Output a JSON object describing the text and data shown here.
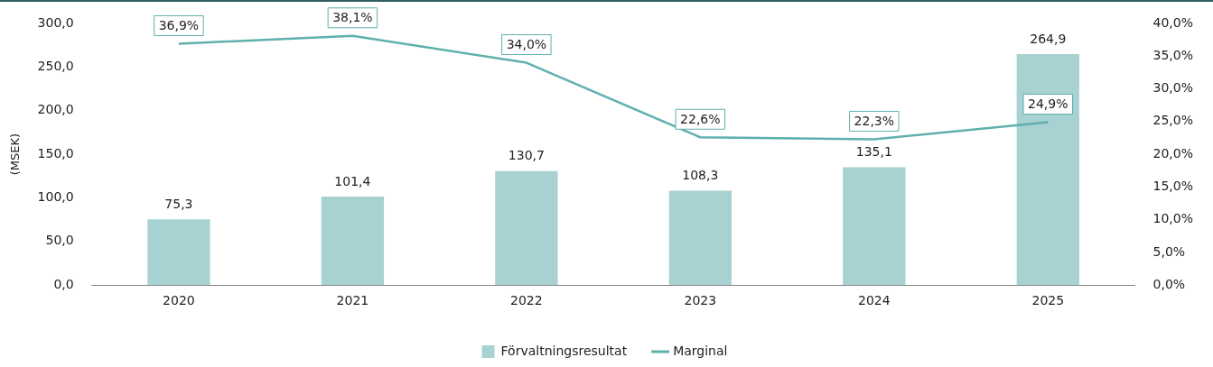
{
  "chart_data": {
    "type": "bar",
    "ylabel": "(MSEK)",
    "categories": [
      "2020",
      "2021",
      "2022",
      "2023",
      "2024",
      "2025"
    ],
    "series": [
      {
        "name": "Förvaltningsresultat",
        "color": "#a8d1d1",
        "values": [
          75.3,
          101.4,
          130.7,
          108.3,
          135.1,
          264.9
        ],
        "value_labels": [
          "75,3",
          "101,4",
          "130,7",
          "108,3",
          "135,1",
          "264,9"
        ]
      },
      {
        "name": "Marginal",
        "type": "line",
        "axis": "y2",
        "color": "#5fb0ad",
        "marker": "none",
        "values": [
          36.9,
          38.1,
          34.0,
          22.6,
          22.3,
          24.9
        ],
        "value_labels": [
          "36,9%",
          "38,1%",
          "34,0%",
          "22,6%",
          "22,3%",
          "24,9%"
        ]
      }
    ],
    "ylim": [
      0,
      300
    ],
    "yticks": [
      {
        "value": 0,
        "label": "0,0"
      },
      {
        "value": 50,
        "label": "50,0"
      },
      {
        "value": 100,
        "label": "100,0"
      },
      {
        "value": 150,
        "label": "150,0"
      },
      {
        "value": 200,
        "label": "200,0"
      },
      {
        "value": 250,
        "label": "250,0"
      },
      {
        "value": 300,
        "label": "300,0"
      }
    ],
    "y2lim": [
      0,
      40
    ],
    "y2ticks": [
      {
        "value": 0,
        "label": "0,0%"
      },
      {
        "value": 5,
        "label": "5,0%"
      },
      {
        "value": 10,
        "label": "10,0%"
      },
      {
        "value": 15,
        "label": "15,0%"
      },
      {
        "value": 20,
        "label": "20,0%"
      },
      {
        "value": 25,
        "label": "25,0%"
      },
      {
        "value": 30,
        "label": "30,0%"
      },
      {
        "value": 35,
        "label": "35,0%"
      },
      {
        "value": 40,
        "label": "40,0%"
      }
    ],
    "grid": false,
    "legend": "bottom"
  }
}
